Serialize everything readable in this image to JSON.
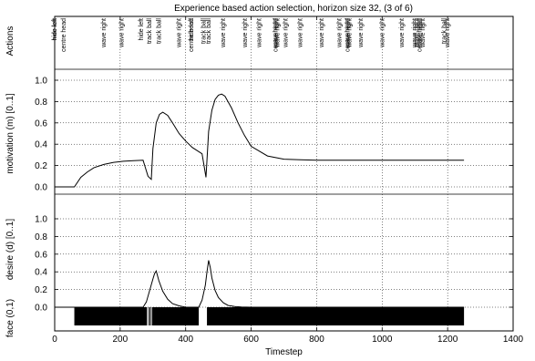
{
  "chart_data": {
    "title": "Experience based action selection, horizon size 32, (3 of 6)",
    "x_axis": {
      "label": "Timestep",
      "range": [
        0,
        1400
      ],
      "ticks": [
        "0",
        "200",
        "400",
        "600",
        "800",
        "1000",
        "1200",
        "1400"
      ],
      "grid_lines": [
        200,
        400,
        600,
        800,
        1000,
        1200
      ]
    },
    "panels": [
      {
        "id": "actions",
        "type": "event_labels",
        "ylabel": "Actions",
        "events": [
          {
            "t": 0,
            "label": "hide left"
          },
          {
            "t": 0,
            "label": "hide left"
          },
          {
            "t": 28,
            "label": "centre head"
          },
          {
            "t": 150,
            "label": "wave right"
          },
          {
            "t": 205,
            "label": "wave right"
          },
          {
            "t": 265,
            "label": "hide left"
          },
          {
            "t": 290,
            "label": "track ball"
          },
          {
            "t": 318,
            "label": "track ball"
          },
          {
            "t": 380,
            "label": "wave right"
          },
          {
            "t": 418,
            "label": "centre head"
          },
          {
            "t": 418,
            "label": "hide left"
          },
          {
            "t": 455,
            "label": "track ball"
          },
          {
            "t": 470,
            "label": "track ball"
          },
          {
            "t": 515,
            "label": "wave right"
          },
          {
            "t": 582,
            "label": "wave right"
          },
          {
            "t": 625,
            "label": "wave right"
          },
          {
            "t": 675,
            "label": "centre head"
          },
          {
            "t": 675,
            "label": "wave right"
          },
          {
            "t": 680,
            "label": "wave right"
          },
          {
            "t": 705,
            "label": "wave right"
          },
          {
            "t": 750,
            "label": "wave right"
          },
          {
            "t": 815,
            "label": "wave right"
          },
          {
            "t": 870,
            "label": "wave right"
          },
          {
            "t": 895,
            "label": "centre head"
          },
          {
            "t": 895,
            "label": "wave right"
          },
          {
            "t": 900,
            "label": "wave right"
          },
          {
            "t": 935,
            "label": "wave right"
          },
          {
            "t": 1000,
            "label": "wave right"
          },
          {
            "t": 1060,
            "label": "wave right"
          },
          {
            "t": 1100,
            "label": "wave right"
          },
          {
            "t": 1105,
            "label": "wave right"
          },
          {
            "t": 1115,
            "label": "centre head"
          },
          {
            "t": 1115,
            "label": "wave right"
          },
          {
            "t": 1125,
            "label": "wave right"
          },
          {
            "t": 1190,
            "label": "track ball"
          },
          {
            "t": 1200,
            "label": "wave right"
          }
        ]
      },
      {
        "id": "motivation",
        "type": "line",
        "ylabel": "motivation (m) [0..1]",
        "ylim": [
          0,
          1
        ],
        "yticks": [
          "0.0",
          "0.2",
          "0.4",
          "0.6",
          "0.8",
          "1.0"
        ],
        "series": [
          {
            "x": [
              0,
              60,
              80,
              100,
              120,
              150,
              180,
              210,
              240,
              270,
              275,
              285,
              295,
              300,
              310,
              320,
              330,
              345,
              360,
              380,
              400,
              420,
              435,
              450,
              462,
              470,
              480,
              490,
              500,
              510,
              520,
              540,
              560,
              580,
              600,
              650,
              700,
              750,
              800,
              1000,
              1250
            ],
            "y": [
              0,
              0,
              0.09,
              0.14,
              0.18,
              0.21,
              0.23,
              0.24,
              0.245,
              0.25,
              0.2,
              0.1,
              0.07,
              0.36,
              0.6,
              0.68,
              0.7,
              0.67,
              0.6,
              0.5,
              0.43,
              0.37,
              0.34,
              0.31,
              0.09,
              0.52,
              0.72,
              0.82,
              0.86,
              0.87,
              0.85,
              0.74,
              0.6,
              0.48,
              0.38,
              0.29,
              0.26,
              0.255,
              0.25,
              0.25,
              0.25
            ]
          }
        ]
      },
      {
        "id": "desire",
        "type": "line",
        "ylabel": "desire (d) [0..1]",
        "ylim": [
          0,
          1
        ],
        "yticks": [
          "0.0",
          "0.2",
          "0.4",
          "0.6",
          "0.8",
          "1.0"
        ],
        "series": [
          {
            "x": [
              0,
              270,
              280,
              290,
              300,
              305,
              310,
              318,
              330,
              345,
              360,
              380,
              400,
              420,
              440,
              450,
              460,
              465,
              470,
              475,
              480,
              490,
              500,
              515,
              530,
              550,
              570,
              600,
              1250
            ],
            "y": [
              0,
              0,
              0.06,
              0.19,
              0.32,
              0.38,
              0.41,
              0.3,
              0.18,
              0.09,
              0.04,
              0.015,
              0,
              0,
              0,
              0.08,
              0.25,
              0.4,
              0.53,
              0.45,
              0.33,
              0.19,
              0.11,
              0.05,
              0.02,
              0.008,
              0.003,
              0,
              0
            ]
          }
        ]
      },
      {
        "id": "face",
        "type": "binary_bar",
        "ylabel": "face (0,1)",
        "segments": [
          {
            "start": 60,
            "end": 282
          },
          {
            "start": 286,
            "end": 288
          },
          {
            "start": 290,
            "end": 292
          },
          {
            "start": 294,
            "end": 296
          },
          {
            "start": 298,
            "end": 440
          },
          {
            "start": 465,
            "end": 1250
          }
        ]
      }
    ]
  }
}
